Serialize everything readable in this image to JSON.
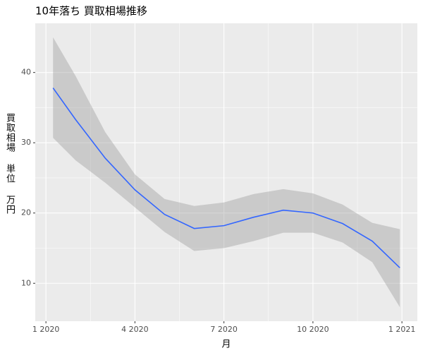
{
  "chart_data": {
    "type": "smooth",
    "title": "10年落ち 買取相場推移",
    "x_label": "月",
    "y_label": "買取相場 単位 万円",
    "x": [
      0.24,
      1,
      2,
      3,
      4,
      5,
      6,
      7,
      8,
      9,
      10,
      11,
      11.93
    ],
    "values": [
      37.8,
      33.3,
      27.8,
      23.3,
      19.8,
      17.8,
      18.2,
      19.4,
      20.4,
      20.0,
      18.5,
      16.0,
      12.2
    ],
    "upper": [
      45.0,
      39.5,
      31.5,
      25.5,
      22.0,
      21.0,
      21.5,
      22.7,
      23.4,
      22.8,
      21.2,
      18.6,
      17.7
    ],
    "lower": [
      30.7,
      27.5,
      24.3,
      20.8,
      17.3,
      14.6,
      15.0,
      16.0,
      17.2,
      17.2,
      15.8,
      13.0,
      6.6
    ],
    "color": "#3366ff",
    "band_color": "#999999",
    "xlim": [
      -0.36,
      12.52
    ],
    "ylim": [
      4.6,
      47.0
    ],
    "xticks": [
      {
        "value": 0,
        "label": "1 2020"
      },
      {
        "value": 3,
        "label": "4 2020"
      },
      {
        "value": 6,
        "label": "7 2020"
      },
      {
        "value": 9,
        "label": "10 2020"
      },
      {
        "value": 12,
        "label": "1 2021"
      }
    ],
    "yticks": [
      10,
      20,
      30,
      40
    ],
    "grid": true
  }
}
